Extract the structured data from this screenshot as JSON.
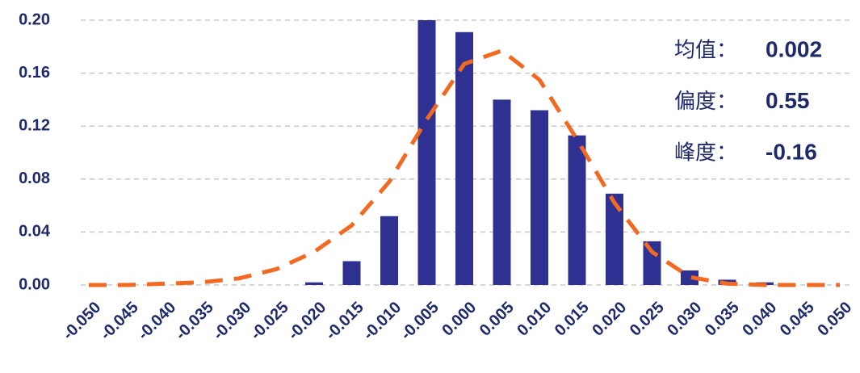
{
  "chart_data": {
    "type": "bar",
    "categories": [
      "-0.050",
      "-0.045",
      "-0.040",
      "-0.035",
      "-0.030",
      "-0.025",
      "-0.020",
      "-0.015",
      "-0.010",
      "-0.005",
      "0.000",
      "0.005",
      "0.010",
      "0.015",
      "0.020",
      "0.025",
      "0.030",
      "0.035",
      "0.040",
      "0.045",
      "0.050"
    ],
    "series": [
      {
        "type": "bar",
        "color": "#2e3192",
        "values": [
          0,
          0,
          0,
          0,
          0,
          0,
          0.002,
          0.018,
          0.052,
          0.2,
          0.191,
          0.14,
          0.132,
          0.113,
          0.069,
          0.033,
          0.011,
          0.004,
          0.002,
          0,
          0
        ]
      },
      {
        "type": "line",
        "color": "#f26a21",
        "values": [
          0,
          0,
          0.001,
          0.002,
          0.005,
          0.012,
          0.025,
          0.045,
          0.078,
          0.125,
          0.167,
          0.177,
          0.155,
          0.11,
          0.062,
          0.025,
          0.006,
          0.001,
          0,
          0,
          0
        ]
      }
    ],
    "ylim": [
      0,
      0.2
    ],
    "yticks": [
      {
        "value": 0,
        "label": "0.00"
      },
      {
        "value": 0.04,
        "label": "0.04"
      },
      {
        "value": 0.08,
        "label": "0.08"
      },
      {
        "value": 0.12,
        "label": "0.12"
      },
      {
        "value": 0.16,
        "label": "0.16"
      },
      {
        "value": 0.2,
        "label": "0.20"
      }
    ],
    "grid": true,
    "annotations": [
      {
        "label": "均值：",
        "value": "0.002"
      },
      {
        "label": "偏度：",
        "value": "0.55"
      },
      {
        "label": "峰度：",
        "value": "-0.16"
      }
    ]
  }
}
